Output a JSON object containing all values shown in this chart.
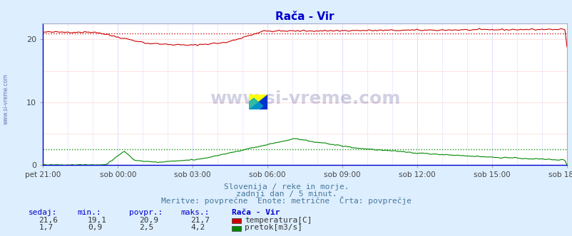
{
  "title": "Rača - Vir",
  "bg_color": "#ddeeff",
  "plot_bg_color": "#ffffff",
  "x_labels": [
    "pet 21:00",
    "sob 00:00",
    "sob 03:00",
    "sob 06:00",
    "sob 09:00",
    "sob 12:00",
    "sob 15:00",
    "sob 18:00"
  ],
  "x_ticks_norm": [
    0.0,
    0.142857,
    0.285714,
    0.428571,
    0.571429,
    0.714286,
    0.857143,
    1.0
  ],
  "y_min": 0,
  "y_max": 22.5,
  "y_ticks": [
    0,
    10,
    20
  ],
  "temp_color": "#cc0000",
  "flow_color": "#008800",
  "temp_avg": 20.9,
  "flow_avg": 2.5,
  "subtitle1": "Slovenija / reke in morje.",
  "subtitle2": "zadnji dan / 5 minut.",
  "subtitle3": "Meritve: povprečne  Enote: metrične  Črta: povprečje",
  "legend_title": "Rača - Vir",
  "stats_headers": [
    "sedaj:",
    "min.:",
    "povpr.:",
    "maks.:"
  ],
  "stats_temp": [
    "21,6",
    "19,1",
    "20,9",
    "21,7"
  ],
  "stats_flow": [
    "1,7",
    "0,9",
    "2,5",
    "4,2"
  ],
  "legend_temp": "temperatura[C]",
  "legend_flow": "pretok[m3/s]",
  "watermark": "www.si-vreme.com",
  "left_label": "www.si-vreme.com",
  "vgrid_color": "#ddddff",
  "hgrid_color": "#ffdddd"
}
